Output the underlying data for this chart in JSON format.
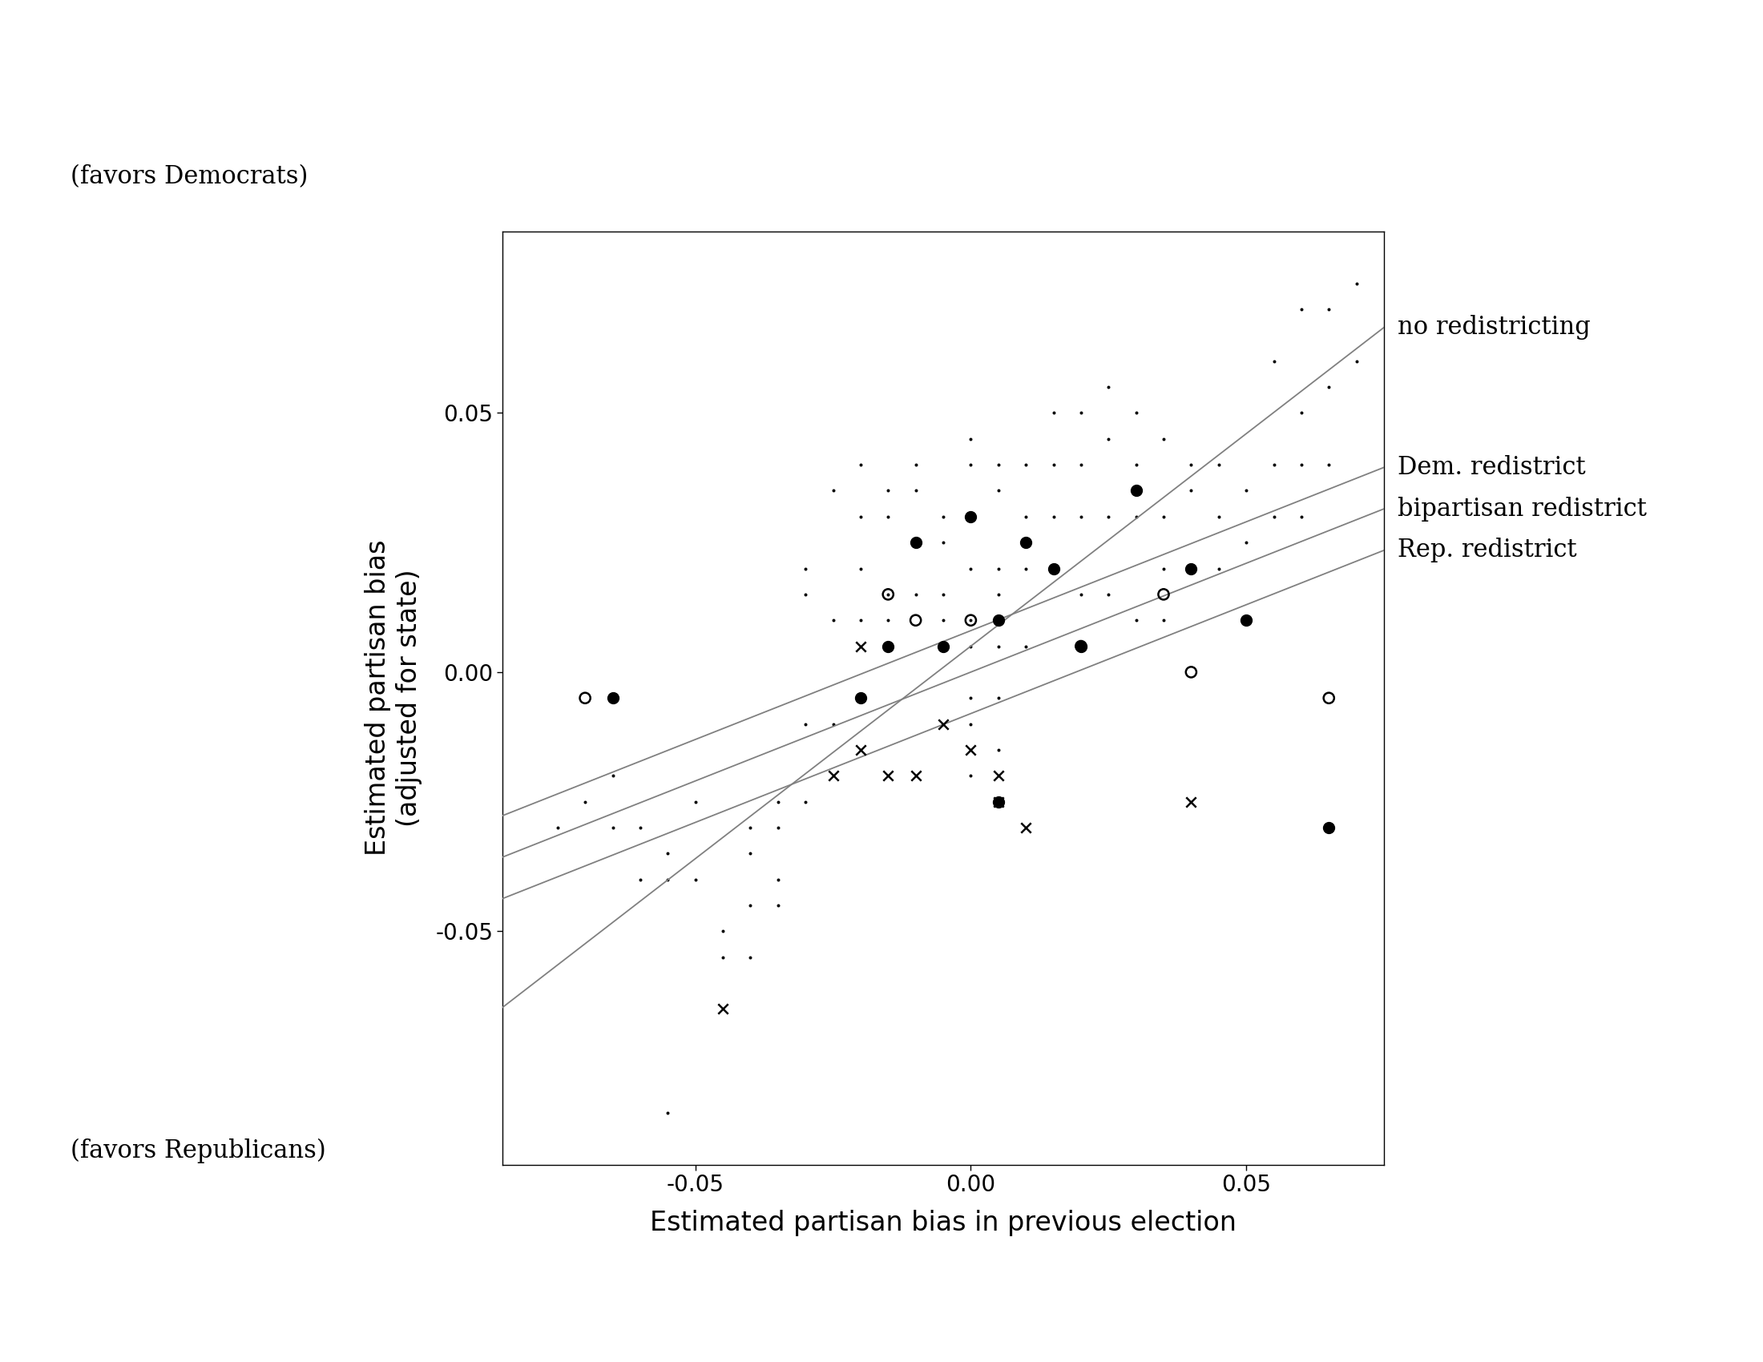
{
  "xlabel": "Estimated partisan bias in previous election",
  "ylabel_line1": "Estimated partisan bias",
  "ylabel_line2": "(adjusted for state)",
  "xlim": [
    -0.085,
    0.075
  ],
  "ylim": [
    -0.095,
    0.085
  ],
  "xticks": [
    -0.05,
    0.0,
    0.05
  ],
  "yticks": [
    -0.05,
    0.0,
    0.05
  ],
  "label_favors_dem": "(favors Democrats)",
  "label_favors_rep": "(favors Republicans)",
  "legend_labels": [
    "no redistricting",
    "Dem. redistrict",
    "bipartisan redistrict",
    "Rep. redistrict"
  ],
  "dem_circles": [
    [
      -0.065,
      -0.005
    ],
    [
      -0.02,
      -0.005
    ],
    [
      -0.015,
      0.005
    ],
    [
      -0.01,
      0.025
    ],
    [
      -0.005,
      0.005
    ],
    [
      0.0,
      0.03
    ],
    [
      0.005,
      -0.025
    ],
    [
      0.005,
      0.01
    ],
    [
      0.01,
      0.025
    ],
    [
      0.015,
      0.02
    ],
    [
      0.02,
      0.005
    ],
    [
      0.03,
      0.035
    ],
    [
      0.04,
      0.02
    ],
    [
      0.05,
      0.01
    ],
    [
      0.065,
      -0.03
    ]
  ],
  "bipartisan_circles": [
    [
      -0.07,
      -0.005
    ],
    [
      -0.015,
      0.015
    ],
    [
      -0.01,
      0.01
    ],
    [
      0.0,
      0.01
    ],
    [
      0.02,
      0.005
    ],
    [
      0.035,
      0.015
    ],
    [
      0.04,
      0.0
    ],
    [
      0.065,
      -0.005
    ]
  ],
  "rep_crosses": [
    [
      -0.045,
      -0.065
    ],
    [
      -0.025,
      -0.02
    ],
    [
      -0.02,
      0.005
    ],
    [
      -0.02,
      -0.015
    ],
    [
      -0.015,
      -0.02
    ],
    [
      -0.01,
      -0.02
    ],
    [
      -0.005,
      -0.01
    ],
    [
      0.0,
      -0.015
    ],
    [
      0.005,
      -0.02
    ],
    [
      0.005,
      -0.025
    ],
    [
      0.01,
      -0.03
    ],
    [
      0.04,
      -0.025
    ]
  ],
  "control_dots": [
    [
      -0.075,
      -0.03
    ],
    [
      -0.07,
      -0.025
    ],
    [
      -0.065,
      -0.03
    ],
    [
      -0.065,
      -0.02
    ],
    [
      -0.06,
      -0.04
    ],
    [
      -0.06,
      -0.03
    ],
    [
      -0.055,
      -0.035
    ],
    [
      -0.055,
      -0.04
    ],
    [
      -0.05,
      -0.04
    ],
    [
      -0.05,
      -0.025
    ],
    [
      -0.045,
      -0.05
    ],
    [
      -0.045,
      -0.055
    ],
    [
      -0.04,
      -0.035
    ],
    [
      -0.04,
      -0.03
    ],
    [
      -0.04,
      -0.045
    ],
    [
      -0.04,
      -0.055
    ],
    [
      -0.035,
      -0.025
    ],
    [
      -0.035,
      -0.03
    ],
    [
      -0.035,
      -0.04
    ],
    [
      -0.035,
      -0.045
    ],
    [
      -0.03,
      -0.025
    ],
    [
      -0.03,
      0.015
    ],
    [
      -0.03,
      0.02
    ],
    [
      -0.03,
      -0.01
    ],
    [
      -0.025,
      0.01
    ],
    [
      -0.025,
      0.035
    ],
    [
      -0.025,
      -0.01
    ],
    [
      -0.02,
      0.04
    ],
    [
      -0.02,
      0.03
    ],
    [
      -0.02,
      0.02
    ],
    [
      -0.02,
      0.01
    ],
    [
      -0.015,
      0.035
    ],
    [
      -0.015,
      0.03
    ],
    [
      -0.015,
      0.015
    ],
    [
      -0.015,
      0.01
    ],
    [
      -0.01,
      0.04
    ],
    [
      -0.01,
      0.035
    ],
    [
      -0.01,
      0.025
    ],
    [
      -0.01,
      0.015
    ],
    [
      -0.005,
      0.03
    ],
    [
      -0.005,
      0.025
    ],
    [
      -0.005,
      0.015
    ],
    [
      -0.005,
      0.01
    ],
    [
      0.0,
      0.045
    ],
    [
      0.0,
      0.04
    ],
    [
      0.0,
      0.03
    ],
    [
      0.0,
      0.02
    ],
    [
      0.0,
      0.01
    ],
    [
      0.0,
      0.005
    ],
    [
      0.0,
      -0.005
    ],
    [
      0.0,
      -0.01
    ],
    [
      0.0,
      -0.02
    ],
    [
      0.005,
      0.04
    ],
    [
      0.005,
      0.035
    ],
    [
      0.005,
      0.02
    ],
    [
      0.005,
      0.015
    ],
    [
      0.005,
      0.005
    ],
    [
      0.005,
      -0.005
    ],
    [
      0.005,
      -0.015
    ],
    [
      0.01,
      0.04
    ],
    [
      0.01,
      0.03
    ],
    [
      0.01,
      0.02
    ],
    [
      0.01,
      0.005
    ],
    [
      0.015,
      0.05
    ],
    [
      0.015,
      0.04
    ],
    [
      0.015,
      0.03
    ],
    [
      0.015,
      0.02
    ],
    [
      0.02,
      0.05
    ],
    [
      0.02,
      0.04
    ],
    [
      0.02,
      0.03
    ],
    [
      0.02,
      0.015
    ],
    [
      0.025,
      0.055
    ],
    [
      0.025,
      0.045
    ],
    [
      0.025,
      0.03
    ],
    [
      0.025,
      0.015
    ],
    [
      0.03,
      0.05
    ],
    [
      0.03,
      0.04
    ],
    [
      0.03,
      0.03
    ],
    [
      0.03,
      0.01
    ],
    [
      0.035,
      0.045
    ],
    [
      0.035,
      0.03
    ],
    [
      0.035,
      0.02
    ],
    [
      0.035,
      0.01
    ],
    [
      0.04,
      0.04
    ],
    [
      0.04,
      0.035
    ],
    [
      0.04,
      0.02
    ],
    [
      0.045,
      0.04
    ],
    [
      0.045,
      0.03
    ],
    [
      0.045,
      0.02
    ],
    [
      0.05,
      0.035
    ],
    [
      0.05,
      0.025
    ],
    [
      0.055,
      0.06
    ],
    [
      0.055,
      0.04
    ],
    [
      0.055,
      0.03
    ],
    [
      0.06,
      0.07
    ],
    [
      0.06,
      0.05
    ],
    [
      0.06,
      0.04
    ],
    [
      0.06,
      0.03
    ],
    [
      0.065,
      0.07
    ],
    [
      0.065,
      0.055
    ],
    [
      0.065,
      0.04
    ],
    [
      0.07,
      0.075
    ],
    [
      0.07,
      0.06
    ],
    [
      -0.055,
      -0.085
    ]
  ],
  "line_no_redistrict": {
    "slope": 0.82,
    "intercept": 0.005
  },
  "line_dem": {
    "slope": 0.42,
    "intercept": 0.008
  },
  "line_bipartisan": {
    "slope": 0.42,
    "intercept": 0.0
  },
  "line_rep": {
    "slope": 0.42,
    "intercept": -0.008
  },
  "line_color": "#808080",
  "dot_color": "#000000",
  "dot_size": 3.5,
  "big_dot_size": 100,
  "cross_size": 80,
  "open_circle_size": 90,
  "tick_fontsize": 20,
  "label_fontsize": 24,
  "annot_fontsize": 22
}
